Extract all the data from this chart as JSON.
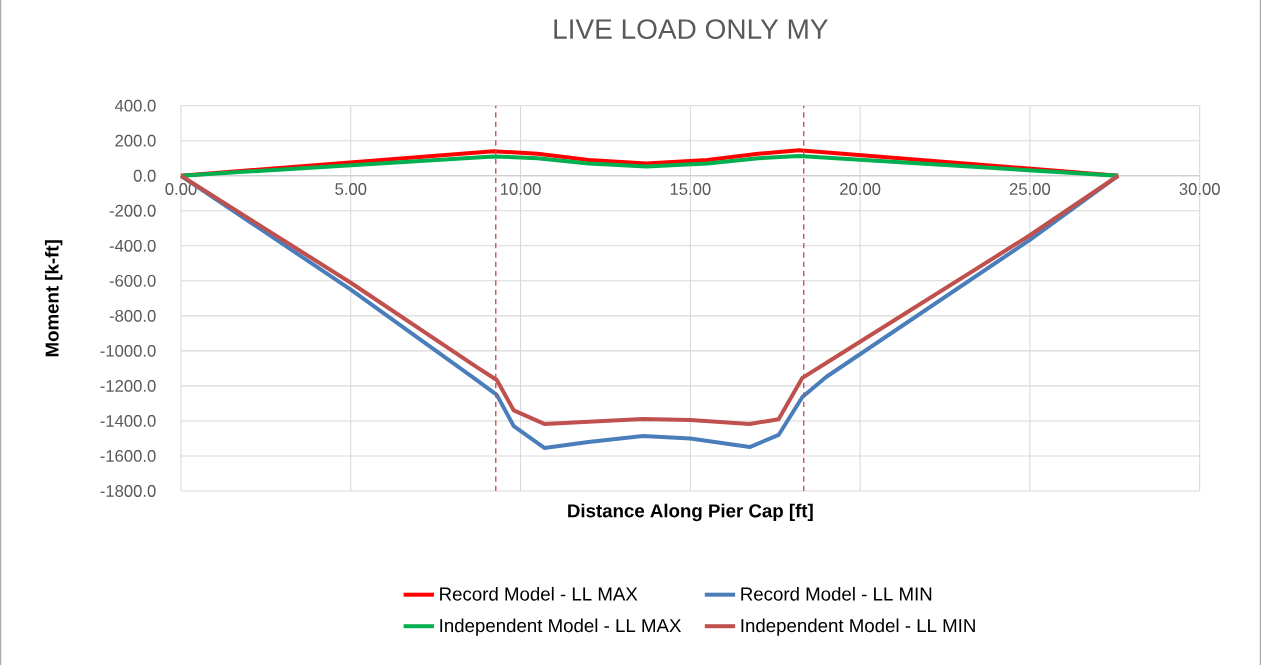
{
  "chart_data": {
    "type": "line",
    "title": "LIVE LOAD ONLY MY",
    "xlabel": "Distance Along Pier Cap [ft]",
    "ylabel": "Moment [k-ft]",
    "xlim": [
      0,
      30
    ],
    "ylim": [
      -1800,
      400
    ],
    "xticks": [
      {
        "value": 0,
        "label": "0.00"
      },
      {
        "value": 5,
        "label": "5.00"
      },
      {
        "value": 10,
        "label": "10.00"
      },
      {
        "value": 15,
        "label": "15.00"
      },
      {
        "value": 20,
        "label": "20.00"
      },
      {
        "value": 25,
        "label": "25.00"
      },
      {
        "value": 30,
        "label": "30.00"
      }
    ],
    "yticks": [
      {
        "value": 400,
        "label": "400.0"
      },
      {
        "value": 200,
        "label": "200.0"
      },
      {
        "value": 0,
        "label": "0.0"
      },
      {
        "value": -200,
        "label": "-200.0"
      },
      {
        "value": -400,
        "label": "-400.0"
      },
      {
        "value": -600,
        "label": "-600.0"
      },
      {
        "value": -800,
        "label": "-800.0"
      },
      {
        "value": -1000,
        "label": "-1000.0"
      },
      {
        "value": -1200,
        "label": "-1200.0"
      },
      {
        "value": -1400,
        "label": "-1400.0"
      },
      {
        "value": -1600,
        "label": "-1600.0"
      },
      {
        "value": -1800,
        "label": "-1800.0"
      }
    ],
    "grid": true,
    "legend": "bottom",
    "marker": "none",
    "line_style": "solid",
    "ref_lines": [
      {
        "axis": "x",
        "value": 9.27,
        "color": "#c0504d",
        "line_style": "dashed"
      },
      {
        "axis": "x",
        "value": 18.34,
        "color": "#c0504d",
        "line_style": "dashed"
      }
    ],
    "series": [
      {
        "name": "Record Model - LL MAX",
        "color": "#ff0000",
        "x": [
          0,
          9.2,
          10.5,
          12,
          13.7,
          15.5,
          17,
          18.2,
          27.6
        ],
        "values": [
          0,
          140,
          125,
          90,
          70,
          90,
          125,
          145,
          0
        ]
      },
      {
        "name": "Record Model - LL MIN",
        "color": "#4a7ebb",
        "x": [
          0,
          5,
          8.7,
          9.3,
          9.8,
          10.7,
          12,
          13.6,
          15,
          16.75,
          17.6,
          18.3,
          19,
          25,
          27.6
        ],
        "values": [
          0,
          -650,
          -1166,
          -1251,
          -1430,
          -1554,
          -1520,
          -1486,
          -1500,
          -1549,
          -1480,
          -1263,
          -1149,
          -366,
          0
        ]
      },
      {
        "name": "Independent Model - LL MAX",
        "color": "#00b050",
        "x": [
          0,
          9.2,
          10.5,
          12,
          13.7,
          15.5,
          17,
          18.2,
          27.6
        ],
        "values": [
          0,
          110,
          100,
          70,
          52,
          70,
          100,
          112,
          0
        ]
      },
      {
        "name": "Independent Model - LL MIN",
        "color": "#c0504d",
        "x": [
          0,
          5,
          8.7,
          9.3,
          9.8,
          10.7,
          12,
          13.6,
          15,
          16.75,
          17.6,
          18.3,
          19,
          25,
          27.6
        ],
        "values": [
          0,
          -611,
          -1091,
          -1166,
          -1340,
          -1417,
          -1405,
          -1389,
          -1395,
          -1417,
          -1390,
          -1154,
          -1069,
          -340,
          0
        ]
      }
    ]
  }
}
